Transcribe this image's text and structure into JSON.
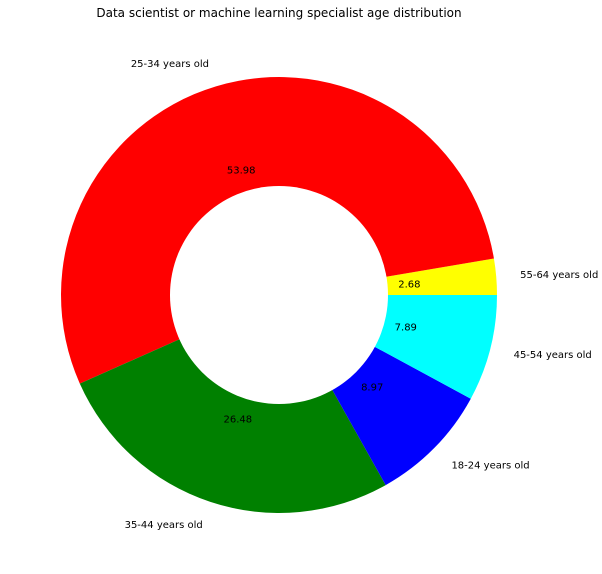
{
  "chart_data": {
    "type": "pie",
    "style": "donut",
    "title": "Data scientist or machine learning specialist age distribution",
    "start_angle_deg": 0,
    "direction": "counterclockwise",
    "slices": [
      {
        "label": "55-64 years old",
        "value": 2.68,
        "value_label": "2.68",
        "color": "#ffff00"
      },
      {
        "label": "25-34 years old",
        "value": 53.98,
        "value_label": "53.98",
        "color": "#ff0000"
      },
      {
        "label": "35-44 years old",
        "value": 26.48,
        "value_label": "26.48",
        "color": "#008000"
      },
      {
        "label": "18-24 years old",
        "value": 8.97,
        "value_label": "8.97",
        "color": "#0000ff"
      },
      {
        "label": "45-54 years old",
        "value": 7.89,
        "value_label": "7.89",
        "color": "#00ffff"
      }
    ]
  }
}
